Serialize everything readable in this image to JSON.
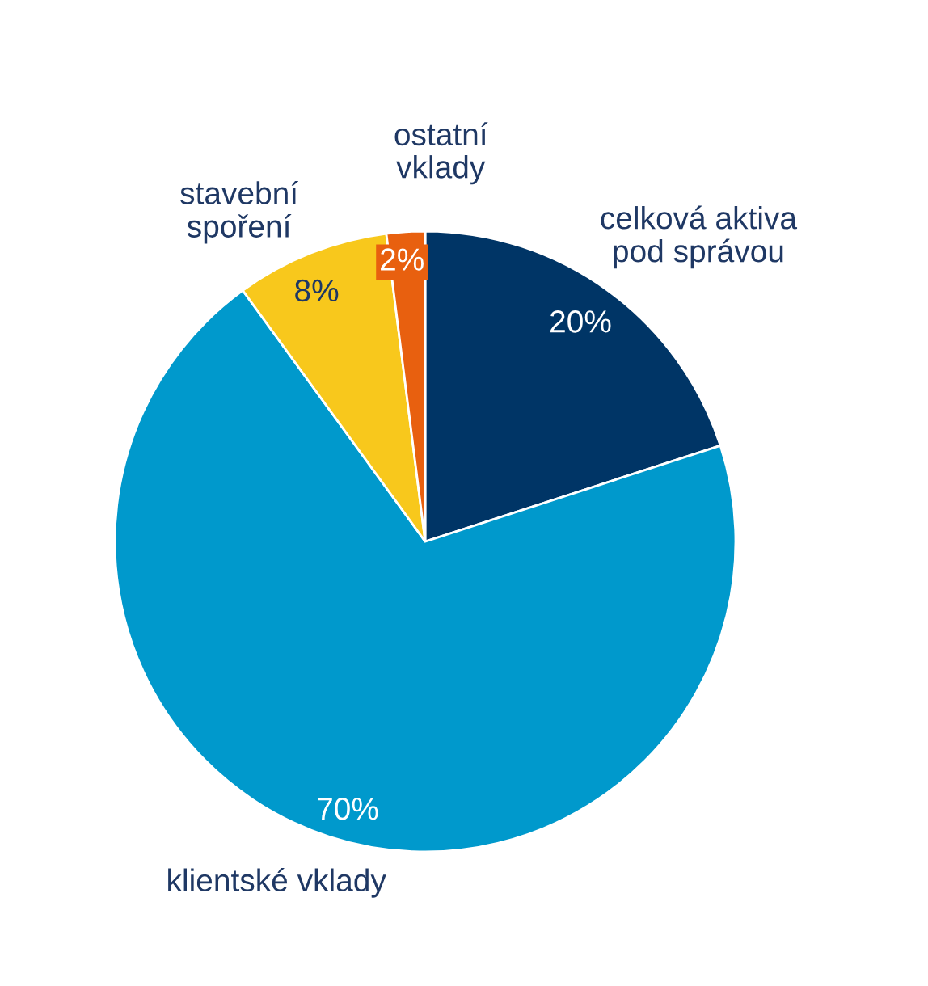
{
  "chart_data": {
    "type": "pie",
    "categories": [
      "celková aktiva\npod správou",
      "klientské vklady",
      "stavební\nspoření",
      "ostatní\nvklady"
    ],
    "values": [
      20,
      70,
      8,
      2
    ],
    "colors": [
      "#003566",
      "#0099cc",
      "#f8c81c",
      "#e8600f"
    ],
    "value_labels": [
      "20%",
      "70%",
      "8%",
      "2%"
    ],
    "legend": false
  }
}
